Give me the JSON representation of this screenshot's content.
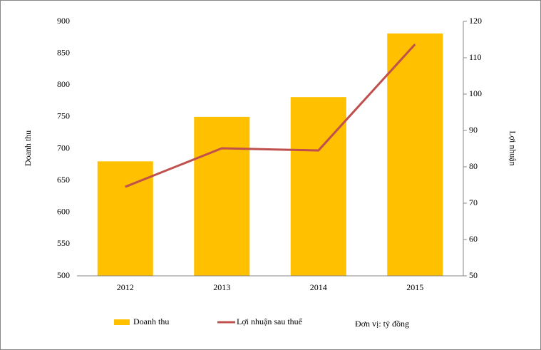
{
  "chart_data": {
    "type": "bar",
    "y_label": "Doanh thu",
    "y2_label": "Lợi nhuận",
    "note": "Đơn vị: tỷ đồng",
    "categories": [
      "2012",
      "2013",
      "2014",
      "2015"
    ],
    "series": [
      {
        "name": "Doanh thu",
        "type": "bar",
        "color": "#ffc000",
        "values": [
          680,
          750,
          781,
          881
        ]
      },
      {
        "name": "Lợi nhuận sau thuế",
        "type": "line",
        "axis": "y2",
        "color": "#c0504d",
        "values": [
          74.5,
          85.1,
          84.5,
          113.7
        ]
      }
    ],
    "ylim": [
      500,
      900
    ],
    "yticks": [
      500,
      550,
      600,
      650,
      700,
      750,
      800,
      850,
      900
    ],
    "y2lim": [
      50,
      120
    ],
    "y2ticks": [
      50,
      60,
      70,
      80,
      90,
      100,
      110,
      120
    ],
    "grid": false
  }
}
